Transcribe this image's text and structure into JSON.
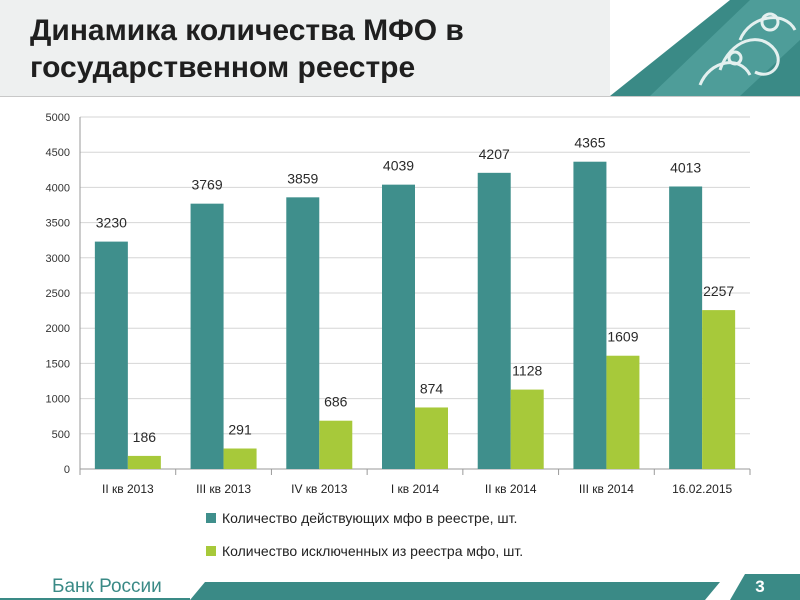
{
  "header": {
    "title": "Динамика количества МФО в государственном реестре"
  },
  "footer": {
    "brand": "Банк России",
    "page_number": "3"
  },
  "colors": {
    "series1": "#3f8f8c",
    "series2": "#a7c93a",
    "accent": "#3a8a86"
  },
  "chart_data": {
    "type": "bar",
    "title": "",
    "xlabel": "",
    "ylabel": "",
    "ylim": [
      0,
      5000
    ],
    "yticks": [
      0,
      500,
      1000,
      1500,
      2000,
      2500,
      3000,
      3500,
      4000,
      4500,
      5000
    ],
    "grid": true,
    "legend": "bottom",
    "categories": [
      "II кв 2013",
      "III кв 2013",
      "IV кв 2013",
      "I кв 2014",
      "II кв 2014",
      "III кв 2014",
      "16.02.2015"
    ],
    "series": [
      {
        "name": "Количество действующих мфо в реестре, шт.",
        "values": [
          3230,
          3769,
          3859,
          4039,
          4207,
          4365,
          4013
        ]
      },
      {
        "name": "Количество исключенных из реестра мфо, шт.",
        "values": [
          186,
          291,
          686,
          874,
          1128,
          1609,
          2257
        ]
      }
    ]
  }
}
